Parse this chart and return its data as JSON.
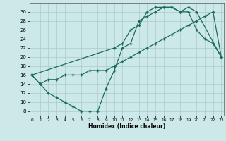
{
  "xlabel": "Humidex (Indice chaleur)",
  "bg_color": "#cce8e8",
  "grid_color": "#aacccc",
  "line_color": "#1a6b5a",
  "line1_x": [
    0,
    1,
    2,
    3,
    4,
    5,
    6,
    7,
    8,
    9,
    10,
    11,
    12,
    13,
    14,
    15,
    16,
    17,
    18,
    19,
    20,
    21,
    22,
    23
  ],
  "line1_y": [
    16,
    14,
    12,
    11,
    10,
    9,
    8,
    8,
    8,
    13,
    17,
    22,
    23,
    28,
    29,
    30,
    31,
    31,
    30,
    30,
    26,
    24,
    23,
    20
  ],
  "line2_x": [
    0,
    1,
    2,
    3,
    4,
    5,
    6,
    7,
    8,
    9,
    10,
    11,
    12,
    13,
    14,
    15,
    16,
    17,
    18,
    19,
    20,
    21,
    22,
    23
  ],
  "line2_y": [
    16,
    14,
    15,
    15,
    16,
    16,
    16,
    17,
    17,
    17,
    18,
    19,
    20,
    21,
    22,
    23,
    24,
    25,
    26,
    27,
    28,
    29,
    30,
    20
  ],
  "line3_x": [
    0,
    10,
    11,
    12,
    13,
    14,
    15,
    16,
    17,
    18,
    19,
    20,
    23
  ],
  "line3_y": [
    16,
    22,
    23,
    26,
    27,
    30,
    31,
    31,
    31,
    30,
    31,
    30,
    20
  ],
  "xlim": [
    -0.3,
    23.3
  ],
  "ylim": [
    7,
    32
  ],
  "yticks": [
    8,
    10,
    12,
    14,
    16,
    18,
    20,
    22,
    24,
    26,
    28,
    30
  ],
  "xticks": [
    0,
    1,
    2,
    3,
    4,
    5,
    6,
    7,
    8,
    9,
    10,
    11,
    12,
    13,
    14,
    15,
    16,
    17,
    18,
    19,
    20,
    21,
    22,
    23
  ]
}
